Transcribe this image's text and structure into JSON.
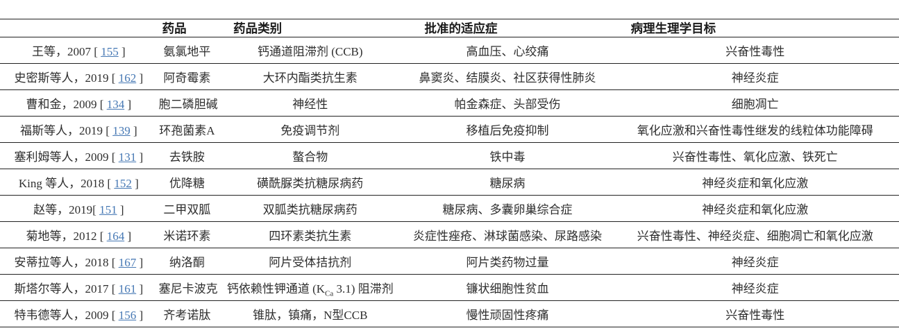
{
  "table": {
    "headers": {
      "drug": "药品",
      "category": "药品类别",
      "indication": "批准的适应症",
      "target": "病理生理学目标"
    },
    "citation_format": {
      "open": "[ ",
      "close": " ]"
    },
    "link_color": "#4678b4",
    "rows": [
      {
        "author": "王等，2007 ",
        "ref": "155",
        "drug": "氨氯地平",
        "category": [
          "钙通道阻滞剂 (CCB)"
        ],
        "indication": "高血压、心绞痛",
        "target": "兴奋性毒性"
      },
      {
        "author": "史密斯等人，2019 ",
        "ref": "162",
        "drug": "阿奇霉素",
        "category": [
          "大环内酯类抗生素"
        ],
        "indication": "鼻窦炎、结膜炎、社区获得性肺炎",
        "target": "神经炎症"
      },
      {
        "author": "曹和金，2009 ",
        "ref": "134",
        "drug": "胞二磷胆碱",
        "category": [
          "神经性"
        ],
        "indication": "帕金森症、头部受伤",
        "target": "细胞凋亡"
      },
      {
        "author": "福斯等人，2019 ",
        "ref": "139",
        "drug": "环孢菌素A",
        "category": [
          "免疫调节剂"
        ],
        "indication": "移植后免疫抑制",
        "target": "氧化应激和兴奋性毒性继发的线粒体功能障碍"
      },
      {
        "author": "塞利姆等人，2009 ",
        "ref": "131",
        "drug": "去铁胺",
        "category": [
          "螯合物"
        ],
        "indication": "铁中毒",
        "target": "兴奋性毒性、氧化应激、铁死亡"
      },
      {
        "author": "King 等人，2018 ",
        "ref": "152",
        "drug": "优降糖",
        "category": [
          "磺酰脲类抗糖尿病药"
        ],
        "indication": "糖尿病",
        "target": "神经炎症和氧化应激"
      },
      {
        "author": "赵等，2019",
        "ref": "151",
        "drug": "二甲双胍",
        "category": [
          "双胍类抗糖尿病药"
        ],
        "indication": "糖尿病、多囊卵巢综合症",
        "target": "神经炎症和氧化应激"
      },
      {
        "author": "菊地等，2012 ",
        "ref": "164",
        "drug": "米诺环素",
        "category": [
          "四环素类抗生素"
        ],
        "indication": "炎症性痤疮、淋球菌感染、尿路感染",
        "target": "兴奋性毒性、神经炎症、细胞凋亡和氧化应激"
      },
      {
        "author": "安蒂拉等人，2018 ",
        "ref": "167",
        "drug": "纳洛酮",
        "category": [
          "阿片受体拮抗剂"
        ],
        "indication": "阿片类药物过量",
        "target": "神经炎症"
      },
      {
        "author": "斯塔尔等人，2017 ",
        "ref": "161",
        "drug": "塞尼卡波克",
        "category": [
          "钙依赖性钾通道 (K",
          {
            "sub": "Ca"
          },
          " 3.1) 阻滞剂"
        ],
        "indication": "镰状细胞性贫血",
        "target": "神经炎症"
      },
      {
        "author": "特韦德等人，2009 ",
        "ref": "156",
        "drug": "齐考诺肽",
        "category": [
          "锥肽，镇痛，N型CCB"
        ],
        "indication": "慢性顽固性疼痛",
        "target": "兴奋性毒性"
      }
    ]
  }
}
